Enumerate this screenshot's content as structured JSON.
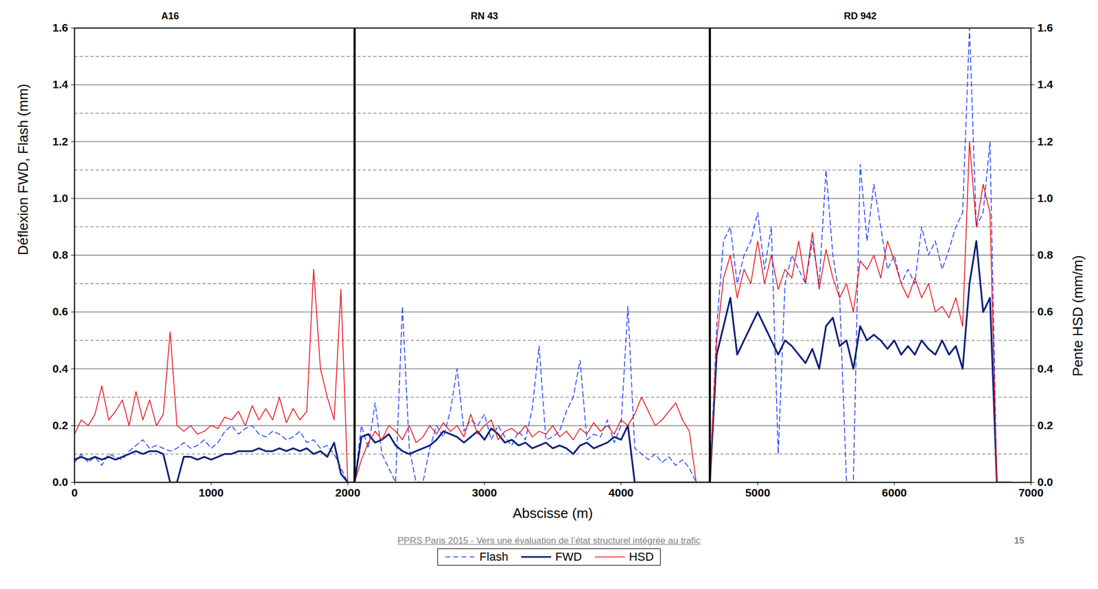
{
  "chart_data": {
    "type": "line",
    "xlabel": "Abscisse (m)",
    "ylabel": "Déflexion FWD, Flash (mm)",
    "y2label": "Pente HSD (mm/m)",
    "xlim": [
      0,
      7000
    ],
    "xticks": [
      0,
      1000,
      2000,
      3000,
      4000,
      5000,
      6000,
      7000
    ],
    "ylim": [
      0,
      1.6
    ],
    "yticks": [
      {
        "value": 0,
        "label": "0.0"
      },
      {
        "value": 0.2,
        "label": "0.2"
      },
      {
        "value": 0.4,
        "label": "0.4"
      },
      {
        "value": 0.6,
        "label": "0.6"
      },
      {
        "value": 0.8,
        "label": "0.8"
      },
      {
        "value": 1,
        "label": "1.0"
      },
      {
        "value": 1.2,
        "label": "1.2"
      },
      {
        "value": 1.4,
        "label": "1.4"
      },
      {
        "value": 1.6,
        "label": "1.6"
      }
    ],
    "y2lim": [
      0,
      1.6
    ],
    "y2ticks": [
      {
        "value": 0,
        "label": "0.0"
      },
      {
        "value": 0.2,
        "label": "0.2"
      },
      {
        "value": 0.4,
        "label": "0.4"
      },
      {
        "value": 0.6,
        "label": "0.6"
      },
      {
        "value": 0.8,
        "label": "0.8"
      },
      {
        "value": 1,
        "label": "1.0"
      },
      {
        "value": 1.2,
        "label": "1.2"
      },
      {
        "value": 1.4,
        "label": "1.4"
      },
      {
        "value": 1.6,
        "label": "1.6"
      }
    ],
    "minor_yticks": [
      0.1,
      0.3,
      0.5,
      0.7,
      0.9,
      1.1,
      1.3,
      1.5
    ],
    "grid": true,
    "legend": "bottom",
    "sections": [
      {
        "label": "A16",
        "x": 700
      },
      {
        "label": "RN 43",
        "x": 3000
      },
      {
        "label": "RD 942",
        "x": 5750
      }
    ],
    "dividers": [
      2050,
      4650
    ],
    "footer": {
      "text": "PPRS Paris 2015 - Vers une évaluation de l’état structurel intégrée au trafic",
      "page": "15"
    },
    "x": [
      0,
      50,
      100,
      150,
      200,
      250,
      300,
      350,
      400,
      450,
      500,
      550,
      600,
      650,
      700,
      750,
      800,
      850,
      900,
      950,
      1000,
      1050,
      1100,
      1150,
      1200,
      1250,
      1300,
      1350,
      1400,
      1450,
      1500,
      1550,
      1600,
      1650,
      1700,
      1750,
      1800,
      1850,
      1900,
      1950,
      2000,
      2050,
      2100,
      2150,
      2200,
      2250,
      2300,
      2350,
      2400,
      2450,
      2500,
      2550,
      2600,
      2650,
      2700,
      2750,
      2800,
      2850,
      2900,
      2950,
      3000,
      3050,
      3100,
      3150,
      3200,
      3250,
      3300,
      3350,
      3400,
      3450,
      3500,
      3550,
      3600,
      3650,
      3700,
      3750,
      3800,
      3850,
      3900,
      3950,
      4000,
      4050,
      4100,
      4150,
      4200,
      4250,
      4300,
      4350,
      4400,
      4450,
      4500,
      4550,
      4600,
      4650,
      4700,
      4750,
      4800,
      4850,
      4900,
      4950,
      5000,
      5050,
      5100,
      5150,
      5200,
      5250,
      5300,
      5350,
      5400,
      5450,
      5500,
      5550,
      5600,
      5650,
      5700,
      5750,
      5800,
      5850,
      5900,
      5950,
      6000,
      6050,
      6100,
      6150,
      6200,
      6250,
      6300,
      6350,
      6400,
      6450,
      6500,
      6550,
      6600,
      6650,
      6700,
      6750,
      6800,
      6850
    ],
    "series": [
      {
        "name": "Flash",
        "color": "#1f3fff",
        "line_style": "dashed",
        "axis": "y",
        "values": [
          0.07,
          0.1,
          0.07,
          0.09,
          0.06,
          0.1,
          0.09,
          0.08,
          0.11,
          0.13,
          0.15,
          0.12,
          0.13,
          0.12,
          0.11,
          0.12,
          0.14,
          0.12,
          0.13,
          0.15,
          0.12,
          0.14,
          0.18,
          0.2,
          0.17,
          0.19,
          0.2,
          0.17,
          0.16,
          0.18,
          0.17,
          0.15,
          0.16,
          0.18,
          0.14,
          0.15,
          0.12,
          0.13,
          0.1,
          0.05,
          0,
          0,
          0.2,
          0.12,
          0.28,
          0.1,
          0.05,
          0,
          0.62,
          0.12,
          0,
          0,
          0.12,
          0.2,
          0.16,
          0.25,
          0.4,
          0.18,
          0.22,
          0.2,
          0.24,
          0.15,
          0.2,
          0.16,
          0.13,
          0.18,
          0.15,
          0.26,
          0.48,
          0.15,
          0.16,
          0.18,
          0.25,
          0.3,
          0.43,
          0.15,
          0.17,
          0.16,
          0.22,
          0.14,
          0.2,
          0.62,
          0.12,
          0.1,
          0.08,
          0.1,
          0.07,
          0.09,
          0.06,
          0.08,
          0.05,
          0,
          0,
          0,
          0.55,
          0.85,
          0.9,
          0.7,
          0.8,
          0.85,
          0.95,
          0.75,
          0.9,
          0.1,
          0.7,
          0.8,
          0.75,
          0.7,
          0.85,
          0.7,
          1.1,
          0.8,
          0.65,
          0,
          0,
          1.12,
          0.85,
          1.05,
          0.9,
          0.75,
          0.8,
          0.7,
          0.75,
          0.7,
          0.9,
          0.8,
          0.85,
          0.75,
          0.82,
          0.9,
          0.95,
          1.6,
          0.9,
          0.95,
          1.2,
          0,
          0,
          0
        ]
      },
      {
        "name": "FWD",
        "color": "#0a1f7a",
        "line_style": "solid",
        "axis": "y",
        "values": [
          0.08,
          0.09,
          0.08,
          0.09,
          0.08,
          0.09,
          0.08,
          0.09,
          0.1,
          0.11,
          0.1,
          0.11,
          0.11,
          0.1,
          0,
          0,
          0.09,
          0.09,
          0.08,
          0.09,
          0.08,
          0.09,
          0.1,
          0.1,
          0.11,
          0.11,
          0.11,
          0.12,
          0.11,
          0.11,
          0.12,
          0.11,
          0.12,
          0.11,
          0.12,
          0.1,
          0.11,
          0.09,
          0.14,
          0.03,
          0,
          0,
          0.16,
          0.17,
          0.14,
          0.15,
          0.17,
          0.13,
          0.11,
          0.1,
          0.11,
          0.12,
          0.13,
          0.15,
          0.18,
          0.17,
          0.16,
          0.14,
          0.16,
          0.18,
          0.15,
          0.19,
          0.17,
          0.14,
          0.15,
          0.13,
          0.14,
          0.12,
          0.13,
          0.14,
          0.12,
          0.13,
          0.12,
          0.1,
          0.13,
          0.14,
          0.12,
          0.13,
          0.14,
          0.16,
          0.15,
          0.2,
          0,
          0,
          0,
          0,
          0,
          0,
          0,
          0,
          0,
          0,
          0,
          0,
          0.45,
          0.55,
          0.65,
          0.45,
          0.5,
          0.55,
          0.6,
          0.55,
          0.5,
          0.45,
          0.5,
          0.48,
          0.45,
          0.42,
          0.47,
          0.4,
          0.55,
          0.58,
          0.48,
          0.5,
          0.4,
          0.55,
          0.5,
          0.52,
          0.5,
          0.47,
          0.5,
          0.45,
          0.48,
          0.45,
          0.5,
          0.47,
          0.45,
          0.5,
          0.45,
          0.48,
          0.4,
          0.7,
          0.85,
          0.6,
          0.65,
          0,
          0,
          0
        ]
      },
      {
        "name": "HSD",
        "color": "#e8141c",
        "line_style": "solid",
        "axis": "y2",
        "values": [
          0.17,
          0.22,
          0.2,
          0.24,
          0.34,
          0.22,
          0.25,
          0.29,
          0.2,
          0.32,
          0.22,
          0.29,
          0.2,
          0.24,
          0.53,
          0.2,
          0.18,
          0.2,
          0.17,
          0.18,
          0.2,
          0.19,
          0.23,
          0.22,
          0.25,
          0.2,
          0.27,
          0.22,
          0.26,
          0.22,
          0.3,
          0.21,
          0.26,
          0.22,
          0.25,
          0.75,
          0.4,
          0.3,
          0.22,
          0.68,
          0,
          0,
          0.08,
          0.14,
          0.18,
          0.15,
          0.2,
          0.18,
          0.15,
          0.2,
          0.14,
          0.16,
          0.2,
          0.17,
          0.21,
          0.18,
          0.2,
          0.16,
          0.24,
          0.17,
          0.2,
          0.22,
          0.15,
          0.18,
          0.19,
          0.17,
          0.2,
          0.16,
          0.18,
          0.17,
          0.2,
          0.16,
          0.18,
          0.15,
          0.19,
          0.17,
          0.21,
          0.18,
          0.2,
          0.17,
          0.22,
          0.2,
          0.24,
          0.3,
          0.25,
          0.2,
          0.22,
          0.25,
          0.28,
          0.22,
          0.18,
          0,
          0,
          0,
          0.5,
          0.72,
          0.8,
          0.65,
          0.75,
          0.7,
          0.85,
          0.7,
          0.8,
          0.68,
          0.75,
          0.72,
          0.85,
          0.7,
          0.88,
          0.68,
          0.82,
          0.72,
          0.65,
          0.7,
          0.6,
          0.78,
          0.75,
          0.8,
          0.72,
          0.85,
          0.78,
          0.7,
          0.65,
          0.72,
          0.65,
          0.7,
          0.6,
          0.62,
          0.58,
          0.65,
          0.55,
          1.2,
          0.9,
          1.05,
          0.95,
          0,
          0,
          0
        ]
      }
    ]
  }
}
